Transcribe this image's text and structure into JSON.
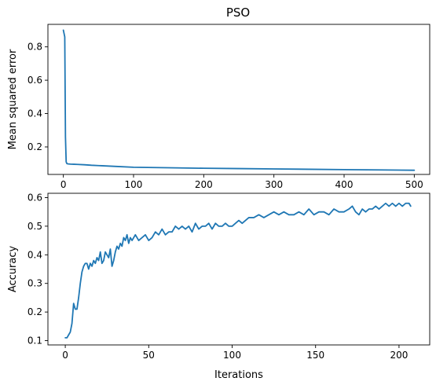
{
  "chart_data": [
    {
      "type": "line",
      "title": "PSO",
      "xlabel": "",
      "ylabel": "Mean squared error",
      "xlim": [
        -22,
        522
      ],
      "ylim": [
        0.035,
        0.935
      ],
      "xticks": [
        0,
        100,
        200,
        300,
        400,
        500
      ],
      "yticks": [
        0.2,
        0.4,
        0.6,
        0.8
      ],
      "ytick_labels": [
        "0.2",
        "0.4",
        "0.6",
        "0.8"
      ],
      "color": "#1f77b4",
      "series": [
        {
          "x": [
            0,
            1,
            2,
            3,
            4,
            5,
            7,
            10,
            15,
            20,
            30,
            40,
            50,
            75,
            100,
            150,
            200,
            250,
            300,
            350,
            400,
            450,
            500
          ],
          "values": [
            0.9,
            0.88,
            0.86,
            0.26,
            0.11,
            0.1,
            0.098,
            0.097,
            0.096,
            0.095,
            0.093,
            0.09,
            0.088,
            0.083,
            0.078,
            0.075,
            0.072,
            0.07,
            0.068,
            0.066,
            0.064,
            0.062,
            0.06
          ]
        }
      ]
    },
    {
      "type": "line",
      "title": "",
      "xlabel": "Iterations",
      "ylabel": "Accuracy",
      "xlim": [
        -10.4,
        218.4
      ],
      "ylim": [
        0.085,
        0.615
      ],
      "xticks": [
        0,
        50,
        100,
        150,
        200
      ],
      "yticks": [
        0.1,
        0.2,
        0.3,
        0.4,
        0.5,
        0.6
      ],
      "ytick_labels": [
        "0.1",
        "0.2",
        "0.3",
        "0.4",
        "0.5",
        "0.6"
      ],
      "color": "#1f77b4",
      "series": [
        {
          "x": [
            0,
            1,
            2,
            3,
            4,
            5,
            6,
            7,
            8,
            9,
            10,
            11,
            12,
            13,
            14,
            15,
            16,
            17,
            18,
            19,
            20,
            21,
            22,
            23,
            24,
            25,
            26,
            27,
            28,
            29,
            30,
            31,
            32,
            33,
            34,
            35,
            36,
            37,
            38,
            39,
            40,
            42,
            44,
            46,
            48,
            50,
            52,
            54,
            56,
            58,
            60,
            62,
            64,
            66,
            68,
            70,
            72,
            74,
            76,
            78,
            80,
            82,
            84,
            86,
            88,
            90,
            92,
            94,
            96,
            98,
            100,
            102,
            104,
            106,
            108,
            110,
            113,
            116,
            119,
            122,
            125,
            128,
            131,
            134,
            137,
            140,
            143,
            146,
            149,
            152,
            155,
            158,
            161,
            164,
            167,
            170,
            172,
            174,
            176,
            178,
            180,
            182,
            184,
            186,
            188,
            190,
            192,
            194,
            196,
            198,
            200,
            202,
            204,
            206,
            207
          ],
          "values": [
            0.11,
            0.11,
            0.12,
            0.13,
            0.16,
            0.23,
            0.21,
            0.21,
            0.25,
            0.3,
            0.34,
            0.36,
            0.37,
            0.37,
            0.35,
            0.37,
            0.36,
            0.38,
            0.37,
            0.39,
            0.38,
            0.41,
            0.37,
            0.38,
            0.41,
            0.4,
            0.39,
            0.42,
            0.36,
            0.38,
            0.41,
            0.43,
            0.42,
            0.44,
            0.43,
            0.46,
            0.45,
            0.47,
            0.44,
            0.46,
            0.45,
            0.47,
            0.45,
            0.46,
            0.47,
            0.45,
            0.46,
            0.48,
            0.47,
            0.49,
            0.47,
            0.48,
            0.48,
            0.5,
            0.49,
            0.5,
            0.49,
            0.5,
            0.48,
            0.51,
            0.49,
            0.5,
            0.5,
            0.51,
            0.49,
            0.51,
            0.5,
            0.5,
            0.51,
            0.5,
            0.5,
            0.51,
            0.52,
            0.51,
            0.52,
            0.53,
            0.53,
            0.54,
            0.53,
            0.54,
            0.55,
            0.54,
            0.55,
            0.54,
            0.54,
            0.55,
            0.54,
            0.56,
            0.54,
            0.55,
            0.55,
            0.54,
            0.56,
            0.55,
            0.55,
            0.56,
            0.57,
            0.55,
            0.54,
            0.56,
            0.55,
            0.56,
            0.56,
            0.57,
            0.56,
            0.57,
            0.58,
            0.57,
            0.58,
            0.57,
            0.58,
            0.57,
            0.58,
            0.58,
            0.57
          ]
        }
      ]
    }
  ]
}
